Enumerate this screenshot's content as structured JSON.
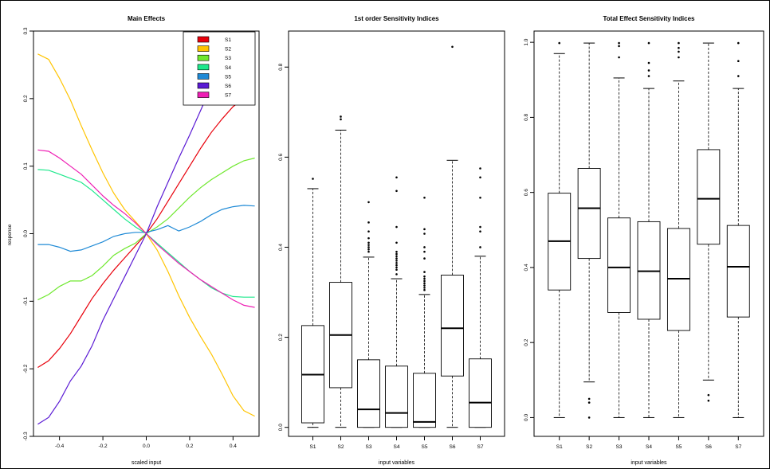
{
  "chart_data": [
    {
      "type": "line",
      "title": "Main Effects",
      "xlabel": "scaled input",
      "ylabel": "response",
      "xlim": [
        -0.52,
        0.52
      ],
      "ylim": [
        -0.3,
        0.3
      ],
      "x_ticks": [
        -0.4,
        -0.2,
        0.0,
        0.2,
        0.4
      ],
      "x_tick_labels": [
        "-0.4",
        "-0.2",
        "0.0",
        "0.2",
        "0.4"
      ],
      "y_ticks": [
        -0.3,
        -0.2,
        -0.1,
        0.0,
        0.1,
        0.2,
        0.3
      ],
      "y_tick_labels": [
        "-0.3",
        "-0.2",
        "-0.1",
        "0.0",
        "0.1",
        "0.2",
        "0.3"
      ],
      "legend_position": "top-right",
      "x": [
        -0.5,
        -0.45,
        -0.4,
        -0.35,
        -0.3,
        -0.25,
        -0.2,
        -0.15,
        -0.1,
        -0.05,
        0.0,
        0.05,
        0.1,
        0.15,
        0.2,
        0.25,
        0.3,
        0.35,
        0.4,
        0.45,
        0.5
      ],
      "series": [
        {
          "name": "S1",
          "color": "#e8000b",
          "values": [
            -0.198,
            -0.188,
            -0.17,
            -0.148,
            -0.122,
            -0.096,
            -0.074,
            -0.054,
            -0.036,
            -0.018,
            0.0,
            0.022,
            0.048,
            0.074,
            0.1,
            0.126,
            0.15,
            0.17,
            0.188,
            0.2,
            0.205
          ]
        },
        {
          "name": "S2",
          "color": "#ffc400",
          "values": [
            0.266,
            0.258,
            0.23,
            0.198,
            0.16,
            0.124,
            0.09,
            0.06,
            0.036,
            0.018,
            0.0,
            -0.024,
            -0.056,
            -0.092,
            -0.124,
            -0.152,
            -0.178,
            -0.208,
            -0.24,
            -0.262,
            -0.27
          ]
        },
        {
          "name": "S3",
          "color": "#6fe82e",
          "values": [
            -0.098,
            -0.09,
            -0.078,
            -0.07,
            -0.07,
            -0.062,
            -0.048,
            -0.032,
            -0.022,
            -0.014,
            0.0,
            0.01,
            0.022,
            0.038,
            0.054,
            0.068,
            0.08,
            0.09,
            0.1,
            0.108,
            0.112
          ]
        },
        {
          "name": "S4",
          "color": "#1de88c",
          "values": [
            0.095,
            0.094,
            0.088,
            0.082,
            0.076,
            0.064,
            0.05,
            0.036,
            0.022,
            0.01,
            0.0,
            -0.014,
            -0.028,
            -0.042,
            -0.056,
            -0.068,
            -0.08,
            -0.088,
            -0.093,
            -0.094,
            -0.094
          ]
        },
        {
          "name": "S5",
          "color": "#1f8ad6",
          "values": [
            -0.016,
            -0.016,
            -0.02,
            -0.026,
            -0.024,
            -0.018,
            -0.012,
            -0.004,
            0.0,
            0.002,
            0.002,
            0.006,
            0.012,
            0.004,
            0.01,
            0.018,
            0.028,
            0.036,
            0.04,
            0.042,
            0.041
          ]
        },
        {
          "name": "S6",
          "color": "#5a1ad4",
          "values": [
            -0.282,
            -0.272,
            -0.248,
            -0.218,
            -0.196,
            -0.166,
            -0.128,
            -0.096,
            -0.064,
            -0.032,
            0.0,
            0.04,
            0.076,
            0.112,
            0.146,
            0.182,
            0.218,
            0.25,
            0.272,
            0.28,
            0.283
          ]
        },
        {
          "name": "S7",
          "color": "#ee1fb4",
          "values": [
            0.124,
            0.122,
            0.112,
            0.1,
            0.088,
            0.072,
            0.056,
            0.042,
            0.03,
            0.016,
            0.0,
            -0.016,
            -0.03,
            -0.044,
            -0.056,
            -0.068,
            -0.078,
            -0.088,
            -0.098,
            -0.106,
            -0.109
          ]
        }
      ]
    },
    {
      "type": "box",
      "title": "1st order Sensitivity Indices",
      "xlabel": "input variables",
      "ylabel": "",
      "ylim": [
        -0.02,
        0.88
      ],
      "y_ticks": [
        0.0,
        0.2,
        0.4,
        0.6,
        0.8
      ],
      "y_tick_labels": [
        "0.0",
        "0.2",
        "0.4",
        "0.6",
        "0.8"
      ],
      "categories": [
        "S1",
        "S2",
        "S3",
        "S4",
        "S5",
        "S6",
        "S7"
      ],
      "boxes": [
        {
          "name": "S1",
          "lower_whisker": 0.0,
          "q1": 0.01,
          "median": 0.117,
          "q3": 0.226,
          "upper_whisker": 0.53,
          "outliers": [
            0.552
          ]
        },
        {
          "name": "S2",
          "lower_whisker": 0.0,
          "q1": 0.088,
          "median": 0.205,
          "q3": 0.322,
          "upper_whisker": 0.66,
          "outliers": [
            0.684,
            0.69
          ]
        },
        {
          "name": "S3",
          "lower_whisker": 0.0,
          "q1": 0.0,
          "median": 0.04,
          "q3": 0.15,
          "upper_whisker": 0.378,
          "outliers": [
            0.39,
            0.395,
            0.4,
            0.405,
            0.41,
            0.42,
            0.435,
            0.455,
            0.5
          ]
        },
        {
          "name": "S4",
          "lower_whisker": 0.0,
          "q1": 0.0,
          "median": 0.032,
          "q3": 0.136,
          "upper_whisker": 0.33,
          "outliers": [
            0.34,
            0.35,
            0.355,
            0.36,
            0.365,
            0.37,
            0.375,
            0.38,
            0.385,
            0.39,
            0.41,
            0.445,
            0.525,
            0.555
          ]
        },
        {
          "name": "S5",
          "lower_whisker": 0.0,
          "q1": 0.0,
          "median": 0.012,
          "q3": 0.12,
          "upper_whisker": 0.295,
          "outliers": [
            0.305,
            0.31,
            0.315,
            0.32,
            0.325,
            0.33,
            0.335,
            0.345,
            0.375,
            0.39,
            0.4,
            0.43,
            0.44,
            0.51
          ]
        },
        {
          "name": "S6",
          "lower_whisker": 0.0,
          "q1": 0.114,
          "median": 0.22,
          "q3": 0.338,
          "upper_whisker": 0.593,
          "outliers": [
            0.845
          ]
        },
        {
          "name": "S7",
          "lower_whisker": 0.0,
          "q1": 0.0,
          "median": 0.055,
          "q3": 0.152,
          "upper_whisker": 0.38,
          "outliers": [
            0.4,
            0.435,
            0.445,
            0.51,
            0.555,
            0.575
          ]
        }
      ]
    },
    {
      "type": "box",
      "title": "Total Effect Sensitivity Indices",
      "xlabel": "input variables",
      "ylabel": "",
      "ylim": [
        -0.05,
        1.03
      ],
      "y_ticks": [
        0.0,
        0.2,
        0.4,
        0.6,
        0.8,
        1.0
      ],
      "y_tick_labels": [
        "0.0",
        "0.2",
        "0.4",
        "0.6",
        "0.8",
        "1.0"
      ],
      "categories": [
        "S1",
        "S2",
        "S3",
        "S4",
        "S5",
        "S6",
        "S7"
      ],
      "boxes": [
        {
          "name": "S1",
          "lower_whisker": 0.0,
          "q1": 0.34,
          "median": 0.47,
          "q3": 0.598,
          "upper_whisker": 0.97,
          "outliers": [
            0.998
          ]
        },
        {
          "name": "S2",
          "lower_whisker": 0.095,
          "q1": 0.424,
          "median": 0.558,
          "q3": 0.664,
          "upper_whisker": 0.998,
          "outliers": [
            0.0,
            0.04,
            0.05
          ]
        },
        {
          "name": "S3",
          "lower_whisker": 0.0,
          "q1": 0.28,
          "median": 0.4,
          "q3": 0.532,
          "upper_whisker": 0.905,
          "outliers": [
            0.96,
            0.99,
            0.998
          ]
        },
        {
          "name": "S4",
          "lower_whisker": 0.0,
          "q1": 0.262,
          "median": 0.39,
          "q3": 0.522,
          "upper_whisker": 0.877,
          "outliers": [
            0.91,
            0.925,
            0.945,
            0.998
          ]
        },
        {
          "name": "S5",
          "lower_whisker": 0.0,
          "q1": 0.232,
          "median": 0.37,
          "q3": 0.504,
          "upper_whisker": 0.897,
          "outliers": [
            0.96,
            0.975,
            0.985,
            0.998
          ]
        },
        {
          "name": "S6",
          "lower_whisker": 0.1,
          "q1": 0.462,
          "median": 0.583,
          "q3": 0.714,
          "upper_whisker": 0.998,
          "outliers": [
            0.045,
            0.06
          ]
        },
        {
          "name": "S7",
          "lower_whisker": 0.0,
          "q1": 0.268,
          "median": 0.402,
          "q3": 0.512,
          "upper_whisker": 0.877,
          "outliers": [
            0.91,
            0.95,
            0.998
          ]
        }
      ]
    }
  ]
}
